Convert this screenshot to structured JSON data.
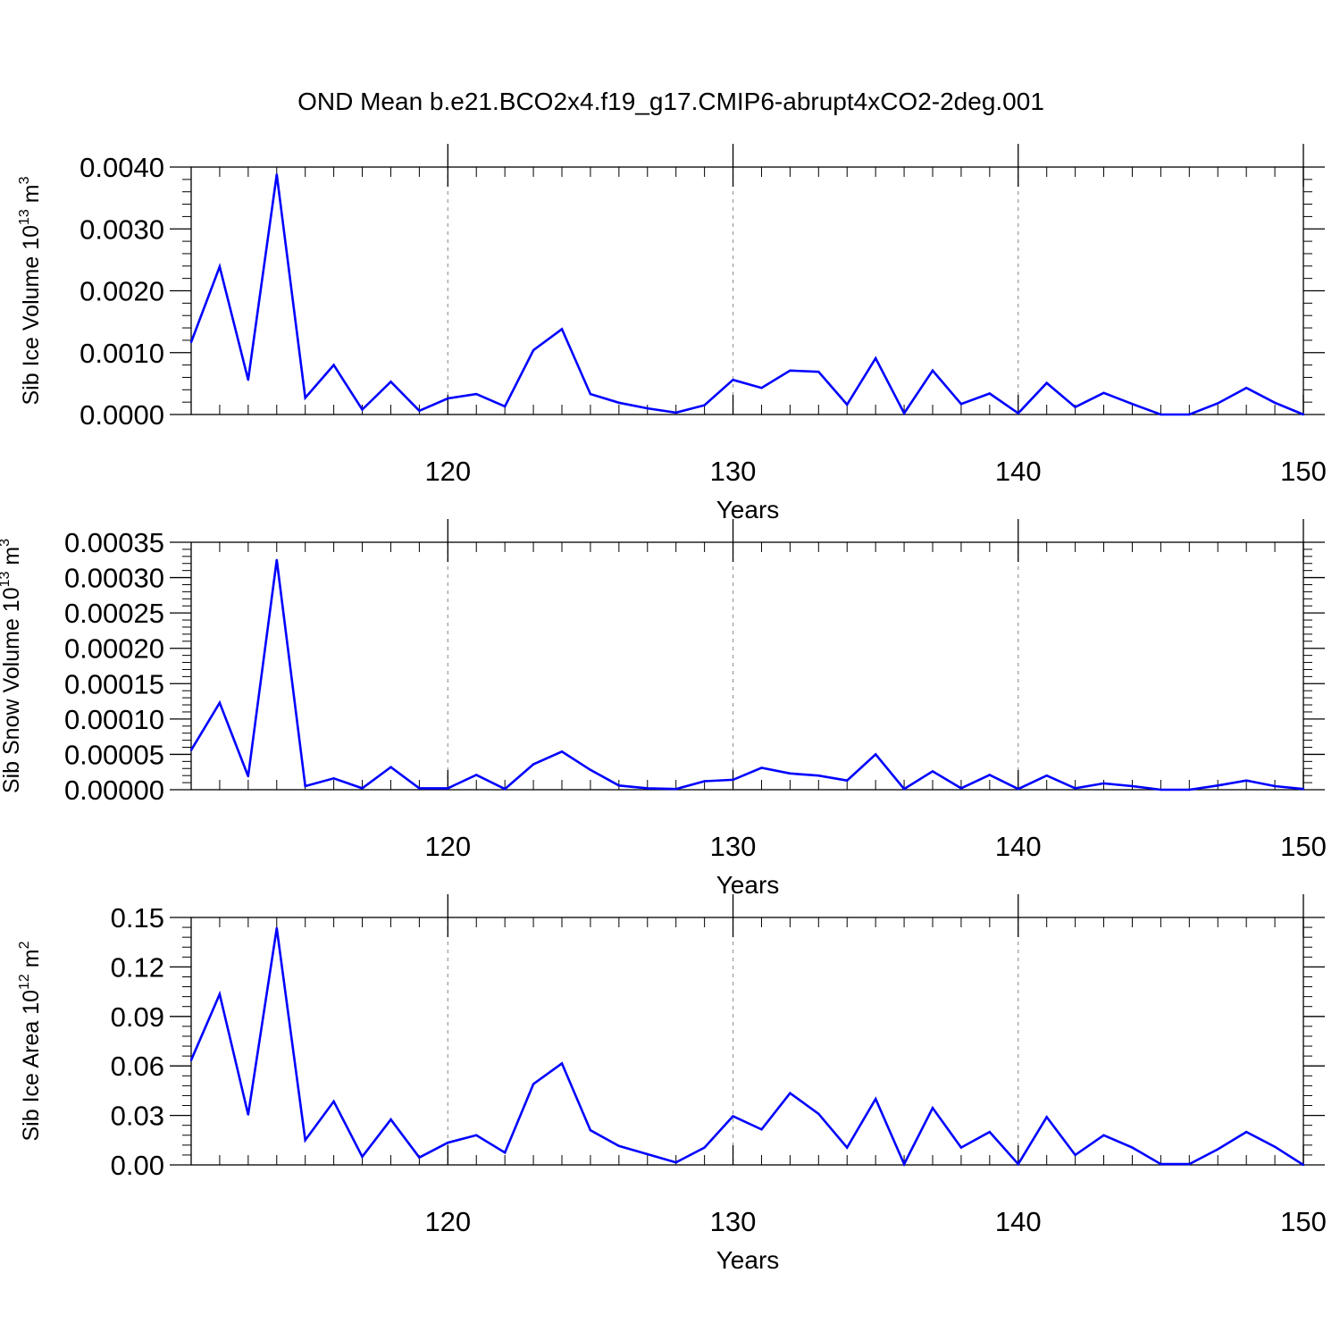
{
  "title": "OND Mean b.e21.BCO2x4.f19_g17.CMIP6-abrupt4xCO2-2deg.001",
  "line_color": "#0000ff",
  "chart_data": [
    {
      "type": "line",
      "xlabel": "Years",
      "ylabel": {
        "base": "Sib Ice Volume 10",
        "exp": "13",
        "unit": " m",
        "unit_exp": "3"
      },
      "xlim": [
        111,
        150
      ],
      "ylim": [
        0,
        0.004
      ],
      "xticks": [
        120,
        130,
        140,
        150
      ],
      "xtick_labels": [
        "120",
        "130",
        "140",
        "150"
      ],
      "yticks": [
        0,
        0.001,
        0.002,
        0.003,
        0.004
      ],
      "ytick_labels": [
        "0.0000",
        "0.0010",
        "0.0020",
        "0.0030",
        "0.0040"
      ],
      "grid_x": [
        120,
        130,
        140
      ],
      "x": [
        111,
        112,
        113,
        114,
        115,
        116,
        117,
        118,
        119,
        120,
        121,
        122,
        123,
        124,
        125,
        126,
        127,
        128,
        129,
        130,
        131,
        132,
        133,
        134,
        135,
        136,
        137,
        138,
        139,
        140,
        141,
        142,
        143,
        144,
        145,
        146,
        147,
        148,
        149,
        150
      ],
      "series": [
        {
          "values": [
            0.00117,
            0.00239,
            0.00056,
            0.00388,
            0.00027,
            0.0008,
            8e-05,
            0.00053,
            6e-05,
            0.00026,
            0.00033,
            0.00013,
            0.00104,
            0.00138,
            0.00033,
            0.00019,
            0.0001,
            3e-05,
            0.00015,
            0.00056,
            0.00043,
            0.00071,
            0.00069,
            0.00016,
            0.00091,
            2e-05,
            0.00071,
            0.00017,
            0.00034,
            2e-05,
            0.00051,
            0.00012,
            0.00035,
            0.00017,
            0.0,
            0.0,
            0.00018,
            0.00043,
            0.00019,
            0.0
          ]
        }
      ]
    },
    {
      "type": "line",
      "xlabel": "Years",
      "ylabel": {
        "base": "Sib Snow Volume 10",
        "exp": "13",
        "unit": " m",
        "unit_exp": "3"
      },
      "xlim": [
        111,
        150
      ],
      "ylim": [
        0,
        0.00035
      ],
      "xticks": [
        120,
        130,
        140,
        150
      ],
      "xtick_labels": [
        "120",
        "130",
        "140",
        "150"
      ],
      "yticks": [
        0,
        5e-05,
        0.0001,
        0.00015,
        0.0002,
        0.00025,
        0.0003,
        0.00035
      ],
      "ytick_labels": [
        "0.00000",
        "0.00005",
        "0.00010",
        "0.00015",
        "0.00020",
        "0.00025",
        "0.00030",
        "0.00035"
      ],
      "grid_x": [
        120,
        130,
        140
      ],
      "x": [
        111,
        112,
        113,
        114,
        115,
        116,
        117,
        118,
        119,
        120,
        121,
        122,
        123,
        124,
        125,
        126,
        127,
        128,
        129,
        130,
        131,
        132,
        133,
        134,
        135,
        136,
        137,
        138,
        139,
        140,
        141,
        142,
        143,
        144,
        145,
        146,
        147,
        148,
        149,
        150
      ],
      "series": [
        {
          "values": [
            5.6e-05,
            0.000123,
            1.9e-05,
            0.000325,
            5e-06,
            1.6e-05,
            2e-06,
            3.2e-05,
            2e-06,
            2e-06,
            2.1e-05,
            1e-06,
            3.6e-05,
            5.4e-05,
            2.8e-05,
            6e-06,
            2e-06,
            1e-06,
            1.2e-05,
            1.4e-05,
            3.1e-05,
            2.3e-05,
            2e-05,
            1.3e-05,
            5e-05,
            1e-06,
            2.6e-05,
            2e-06,
            2.1e-05,
            1e-06,
            2e-05,
            2e-06,
            9e-06,
            5e-06,
            0.0,
            0.0,
            6e-06,
            1.3e-05,
            5e-06,
            1e-06
          ]
        }
      ]
    },
    {
      "type": "line",
      "xlabel": "Years",
      "ylabel": {
        "base": "Sib Ice Area 10",
        "exp": "12",
        "unit": " m",
        "unit_exp": "2"
      },
      "xlim": [
        111,
        150
      ],
      "ylim": [
        0,
        0.15
      ],
      "xticks": [
        120,
        130,
        140,
        150
      ],
      "xtick_labels": [
        "120",
        "130",
        "140",
        "150"
      ],
      "yticks": [
        0,
        0.03,
        0.06,
        0.09,
        0.12,
        0.15
      ],
      "ytick_labels": [
        "0.00",
        "0.03",
        "0.06",
        "0.09",
        "0.12",
        "0.15"
      ],
      "grid_x": [
        120,
        130,
        140
      ],
      "x": [
        111,
        112,
        113,
        114,
        115,
        116,
        117,
        118,
        119,
        120,
        121,
        122,
        123,
        124,
        125,
        126,
        127,
        128,
        129,
        130,
        131,
        132,
        133,
        134,
        135,
        136,
        137,
        138,
        139,
        140,
        141,
        142,
        143,
        144,
        145,
        146,
        147,
        148,
        149,
        150
      ],
      "series": [
        {
          "values": [
            0.0635,
            0.1035,
            0.0305,
            0.1435,
            0.015,
            0.0385,
            0.005,
            0.0275,
            0.0045,
            0.0135,
            0.018,
            0.0075,
            0.049,
            0.0615,
            0.021,
            0.0115,
            0.0065,
            0.0015,
            0.0105,
            0.0295,
            0.0215,
            0.0435,
            0.031,
            0.0105,
            0.04,
            0.0005,
            0.0345,
            0.0105,
            0.02,
            0.0005,
            0.029,
            0.006,
            0.018,
            0.0105,
            0.0005,
            0.0005,
            0.0095,
            0.02,
            0.011,
            0.0
          ]
        }
      ]
    }
  ]
}
